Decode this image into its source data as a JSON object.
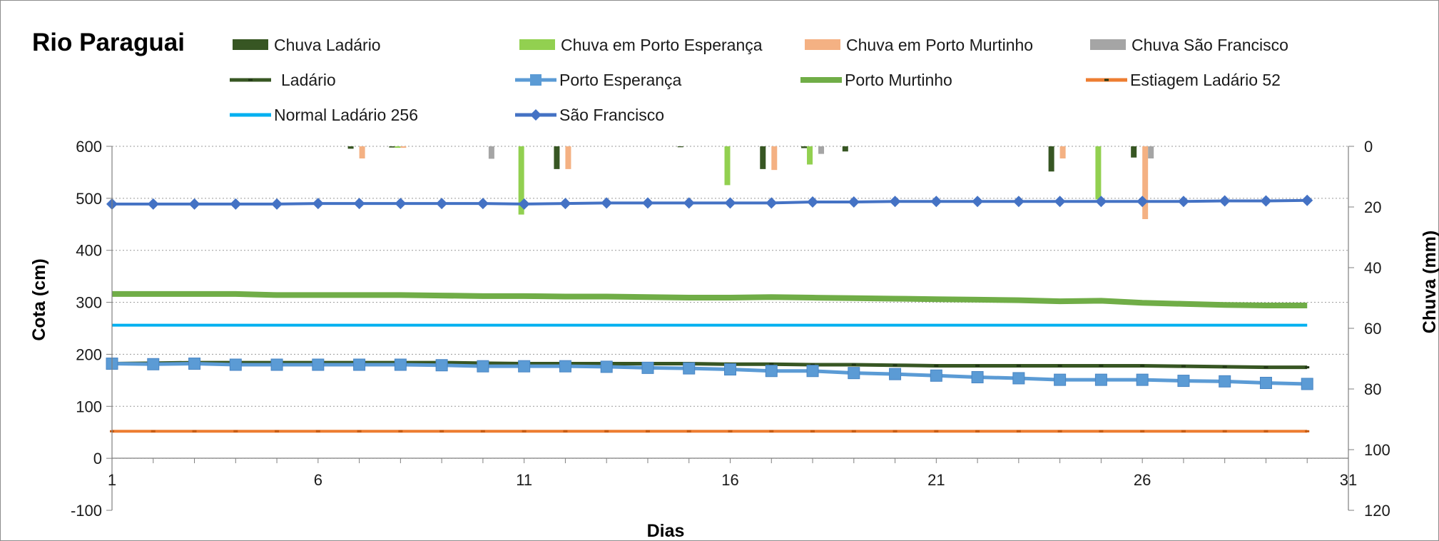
{
  "chart_data": {
    "type": "line",
    "title": "Rio Paraguai",
    "xlabel": "Dias",
    "ylabel": "Cota  (cm)",
    "y2label": "Chuva (mm)",
    "x": [
      1,
      2,
      3,
      4,
      5,
      6,
      7,
      8,
      9,
      10,
      11,
      12,
      13,
      14,
      15,
      16,
      17,
      18,
      19,
      20,
      21,
      22,
      23,
      24,
      25,
      26,
      27,
      28,
      29,
      30
    ],
    "xticks": [
      "1",
      "6",
      "11",
      "16",
      "21",
      "26",
      "31"
    ],
    "xlim": [
      1,
      31
    ],
    "ylim": [
      -100,
      600
    ],
    "yticks": [
      "-100",
      "0",
      "100",
      "200",
      "300",
      "400",
      "500",
      "600"
    ],
    "y2lim": [
      0,
      120
    ],
    "y2_inverted": true,
    "y2ticks": [
      "0",
      "20",
      "40",
      "60",
      "80",
      "100",
      "120"
    ],
    "grid": true,
    "legend": "top",
    "series": [
      {
        "name": "Chuva Ladário",
        "type": "bar",
        "axis": "y2",
        "color": "#375623",
        "values": [
          0,
          0,
          0,
          0,
          0,
          0,
          0.8,
          0.4,
          0,
          0,
          0,
          7.5,
          0,
          0,
          0.3,
          0,
          7.5,
          0.6,
          1.7,
          0,
          0,
          0,
          0,
          8.3,
          0,
          3.7,
          0,
          0,
          0,
          0
        ]
      },
      {
        "name": "Chuva em Porto Esperança",
        "type": "bar",
        "axis": "y2",
        "color": "#92d050",
        "values": [
          0,
          0,
          0,
          0,
          0,
          0,
          0,
          0.5,
          0,
          0,
          22.5,
          0,
          0,
          0,
          0,
          12.8,
          0,
          6,
          0,
          0,
          0,
          0,
          0,
          0,
          17.5,
          0,
          0,
          0,
          0,
          0
        ]
      },
      {
        "name": "Chuva em Porto Murtinho",
        "type": "bar",
        "axis": "y2",
        "color": "#f4b183",
        "values": [
          0,
          0,
          0,
          0,
          0,
          0,
          4,
          0.5,
          0,
          0,
          0,
          7.5,
          0,
          0,
          0,
          0,
          7.8,
          0,
          0,
          0,
          0,
          0,
          0,
          4,
          0,
          24,
          0,
          0,
          0,
          0
        ]
      },
      {
        "name": "Chuva São Francisco",
        "type": "bar",
        "axis": "y2",
        "color": "#a5a5a5",
        "values": [
          0,
          0,
          0,
          0,
          0,
          0,
          0,
          0,
          0,
          4.1,
          0,
          0,
          0,
          0,
          0,
          0,
          0,
          2.5,
          0,
          0,
          0,
          0,
          0,
          0,
          0,
          4,
          0,
          0,
          0,
          0
        ]
      },
      {
        "name": "Ladário",
        "type": "line",
        "axis": "y",
        "color": "#375623",
        "marker": "dash",
        "values": [
          182,
          183,
          184,
          184,
          184,
          184,
          184,
          184,
          184,
          183,
          182,
          182,
          182,
          182,
          182,
          181,
          181,
          180,
          180,
          179,
          178,
          178,
          178,
          178,
          178,
          178,
          177,
          176,
          175,
          175
        ]
      },
      {
        "name": "Porto Esperança",
        "type": "line",
        "axis": "y",
        "color": "#5b9bd5",
        "marker": "square",
        "values": [
          182,
          181,
          182,
          180,
          180,
          180,
          180,
          180,
          179,
          177,
          177,
          177,
          176,
          174,
          173,
          171,
          168,
          168,
          164,
          162,
          159,
          156,
          154,
          151,
          151,
          151,
          149,
          148,
          145,
          143
        ]
      },
      {
        "name": "Porto Murtinho",
        "type": "line",
        "axis": "y",
        "color": "#70ad47",
        "marker": "none",
        "values": [
          316,
          316,
          316,
          316,
          314,
          314,
          314,
          314,
          313,
          312,
          312,
          311,
          311,
          310,
          309,
          309,
          310,
          309,
          308,
          307,
          306,
          305,
          304,
          302,
          303,
          299,
          297,
          295,
          294,
          294
        ]
      },
      {
        "name": "Estiagem Ladário 52",
        "type": "line",
        "axis": "y",
        "color": "#ed7d31",
        "marker": "dash",
        "values": [
          52,
          52,
          52,
          52,
          52,
          52,
          52,
          52,
          52,
          52,
          52,
          52,
          52,
          52,
          52,
          52,
          52,
          52,
          52,
          52,
          52,
          52,
          52,
          52,
          52,
          52,
          52,
          52,
          52,
          52
        ]
      },
      {
        "name": "Normal Ladário 256",
        "type": "line",
        "axis": "y",
        "color": "#00b0f0",
        "marker": "none",
        "values": [
          256,
          256,
          256,
          256,
          256,
          256,
          256,
          256,
          256,
          256,
          256,
          256,
          256,
          256,
          256,
          256,
          256,
          256,
          256,
          256,
          256,
          256,
          256,
          256,
          256,
          256,
          256,
          256,
          256,
          256
        ]
      },
      {
        "name": "São Francisco",
        "type": "line",
        "axis": "y",
        "color": "#4472c4",
        "marker": "diamond",
        "values": [
          489,
          489,
          489,
          489,
          489,
          490,
          490,
          490,
          490,
          490,
          489,
          490,
          491,
          491,
          491,
          491,
          491,
          493,
          493,
          494,
          494,
          494,
          494,
          494,
          494,
          494,
          494,
          495,
          495,
          496
        ]
      }
    ]
  }
}
